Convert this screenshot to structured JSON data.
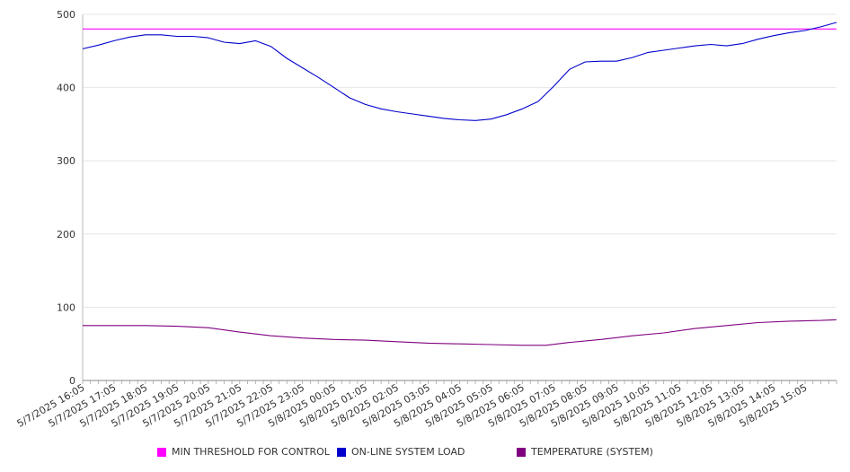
{
  "chart_data": {
    "type": "line",
    "title": "",
    "xlabel": "",
    "ylabel": "",
    "ylim": [
      0,
      500
    ],
    "yticks": [
      0,
      100,
      200,
      300,
      400,
      500
    ],
    "grid": true,
    "legend_position": "bottom",
    "x_start": "5/7/2025 16:00",
    "x_end": "5/8/2025 16:00",
    "x_tick_labels": [
      "5/7/2025 16:05",
      "5/7/2025 17:05",
      "5/7/2025 18:05",
      "5/7/2025 19:05",
      "5/7/2025 20:05",
      "5/7/2025 21:05",
      "5/7/2025 22:05",
      "5/7/2025 23:05",
      "5/8/2025 00:05",
      "5/8/2025 01:05",
      "5/8/2025 02:05",
      "5/8/2025 03:05",
      "5/8/2025 04:05",
      "5/8/2025 05:05",
      "5/8/2025 06:05",
      "5/8/2025 07:05",
      "5/8/2025 08:05",
      "5/8/2025 09:05",
      "5/8/2025 10:05",
      "5/8/2025 11:05",
      "5/8/2025 12:05",
      "5/8/2025 13:05",
      "5/8/2025 14:05",
      "5/8/2025 15:05"
    ],
    "series": [
      {
        "name": "MIN THRESHOLD FOR CONTROL",
        "color": "#ff00ff",
        "points": [
          [
            "5/7/2025 16:00",
            480
          ],
          [
            "5/8/2025 16:00",
            480
          ]
        ]
      },
      {
        "name": "ON-LINE SYSTEM LOAD",
        "color": "#0000cc",
        "points": [
          [
            "5/7/2025 16:00",
            453
          ],
          [
            "5/7/2025 16:30",
            458
          ],
          [
            "5/7/2025 17:00",
            464
          ],
          [
            "5/7/2025 17:30",
            469
          ],
          [
            "5/7/2025 18:00",
            472
          ],
          [
            "5/7/2025 18:30",
            472
          ],
          [
            "5/7/2025 19:00",
            470
          ],
          [
            "5/7/2025 19:30",
            470
          ],
          [
            "5/7/2025 20:00",
            468
          ],
          [
            "5/7/2025 20:30",
            462
          ],
          [
            "5/7/2025 21:00",
            460
          ],
          [
            "5/7/2025 21:30",
            464
          ],
          [
            "5/7/2025 22:00",
            456
          ],
          [
            "5/7/2025 22:30",
            440
          ],
          [
            "5/7/2025 23:00",
            427
          ],
          [
            "5/7/2025 23:30",
            414
          ],
          [
            "5/8/2025 00:00",
            400
          ],
          [
            "5/8/2025 00:30",
            386
          ],
          [
            "5/8/2025 01:00",
            377
          ],
          [
            "5/8/2025 01:30",
            371
          ],
          [
            "5/8/2025 02:00",
            367
          ],
          [
            "5/8/2025 02:30",
            364
          ],
          [
            "5/8/2025 03:00",
            361
          ],
          [
            "5/8/2025 03:30",
            358
          ],
          [
            "5/8/2025 04:00",
            356
          ],
          [
            "5/8/2025 04:30",
            355
          ],
          [
            "5/8/2025 05:00",
            357
          ],
          [
            "5/8/2025 05:30",
            363
          ],
          [
            "5/8/2025 06:00",
            371
          ],
          [
            "5/8/2025 06:30",
            381
          ],
          [
            "5/8/2025 07:00",
            402
          ],
          [
            "5/8/2025 07:30",
            425
          ],
          [
            "5/8/2025 08:00",
            435
          ],
          [
            "5/8/2025 08:30",
            436
          ],
          [
            "5/8/2025 09:00",
            436
          ],
          [
            "5/8/2025 09:30",
            441
          ],
          [
            "5/8/2025 10:00",
            448
          ],
          [
            "5/8/2025 10:30",
            451
          ],
          [
            "5/8/2025 11:00",
            454
          ],
          [
            "5/8/2025 11:30",
            457
          ],
          [
            "5/8/2025 12:00",
            459
          ],
          [
            "5/8/2025 12:30",
            457
          ],
          [
            "5/8/2025 13:00",
            460
          ],
          [
            "5/8/2025 13:30",
            466
          ],
          [
            "5/8/2025 14:00",
            471
          ],
          [
            "5/8/2025 14:30",
            475
          ],
          [
            "5/8/2025 15:00",
            478
          ],
          [
            "5/8/2025 15:30",
            483
          ],
          [
            "5/8/2025 16:00",
            489
          ]
        ]
      },
      {
        "name": "TEMPERATURE (SYSTEM)",
        "color": "#800080",
        "points": [
          [
            "5/7/2025 16:00",
            75
          ],
          [
            "5/7/2025 18:00",
            75
          ],
          [
            "5/7/2025 19:00",
            74
          ],
          [
            "5/7/2025 20:00",
            72
          ],
          [
            "5/7/2025 21:00",
            66
          ],
          [
            "5/7/2025 22:00",
            61
          ],
          [
            "5/7/2025 23:00",
            58
          ],
          [
            "5/8/2025 00:00",
            56
          ],
          [
            "5/8/2025 01:00",
            55
          ],
          [
            "5/8/2025 02:00",
            53
          ],
          [
            "5/8/2025 03:00",
            51
          ],
          [
            "5/8/2025 04:00",
            50
          ],
          [
            "5/8/2025 05:00",
            49
          ],
          [
            "5/8/2025 06:00",
            48
          ],
          [
            "5/8/2025 06:45",
            48
          ],
          [
            "5/8/2025 07:30",
            52
          ],
          [
            "5/8/2025 08:30",
            56
          ],
          [
            "5/8/2025 09:30",
            61
          ],
          [
            "5/8/2025 10:30",
            65
          ],
          [
            "5/8/2025 11:30",
            71
          ],
          [
            "5/8/2025 12:30",
            75
          ],
          [
            "5/8/2025 13:30",
            79
          ],
          [
            "5/8/2025 14:30",
            81
          ],
          [
            "5/8/2025 15:30",
            82
          ],
          [
            "5/8/2025 16:00",
            83
          ]
        ]
      }
    ]
  }
}
